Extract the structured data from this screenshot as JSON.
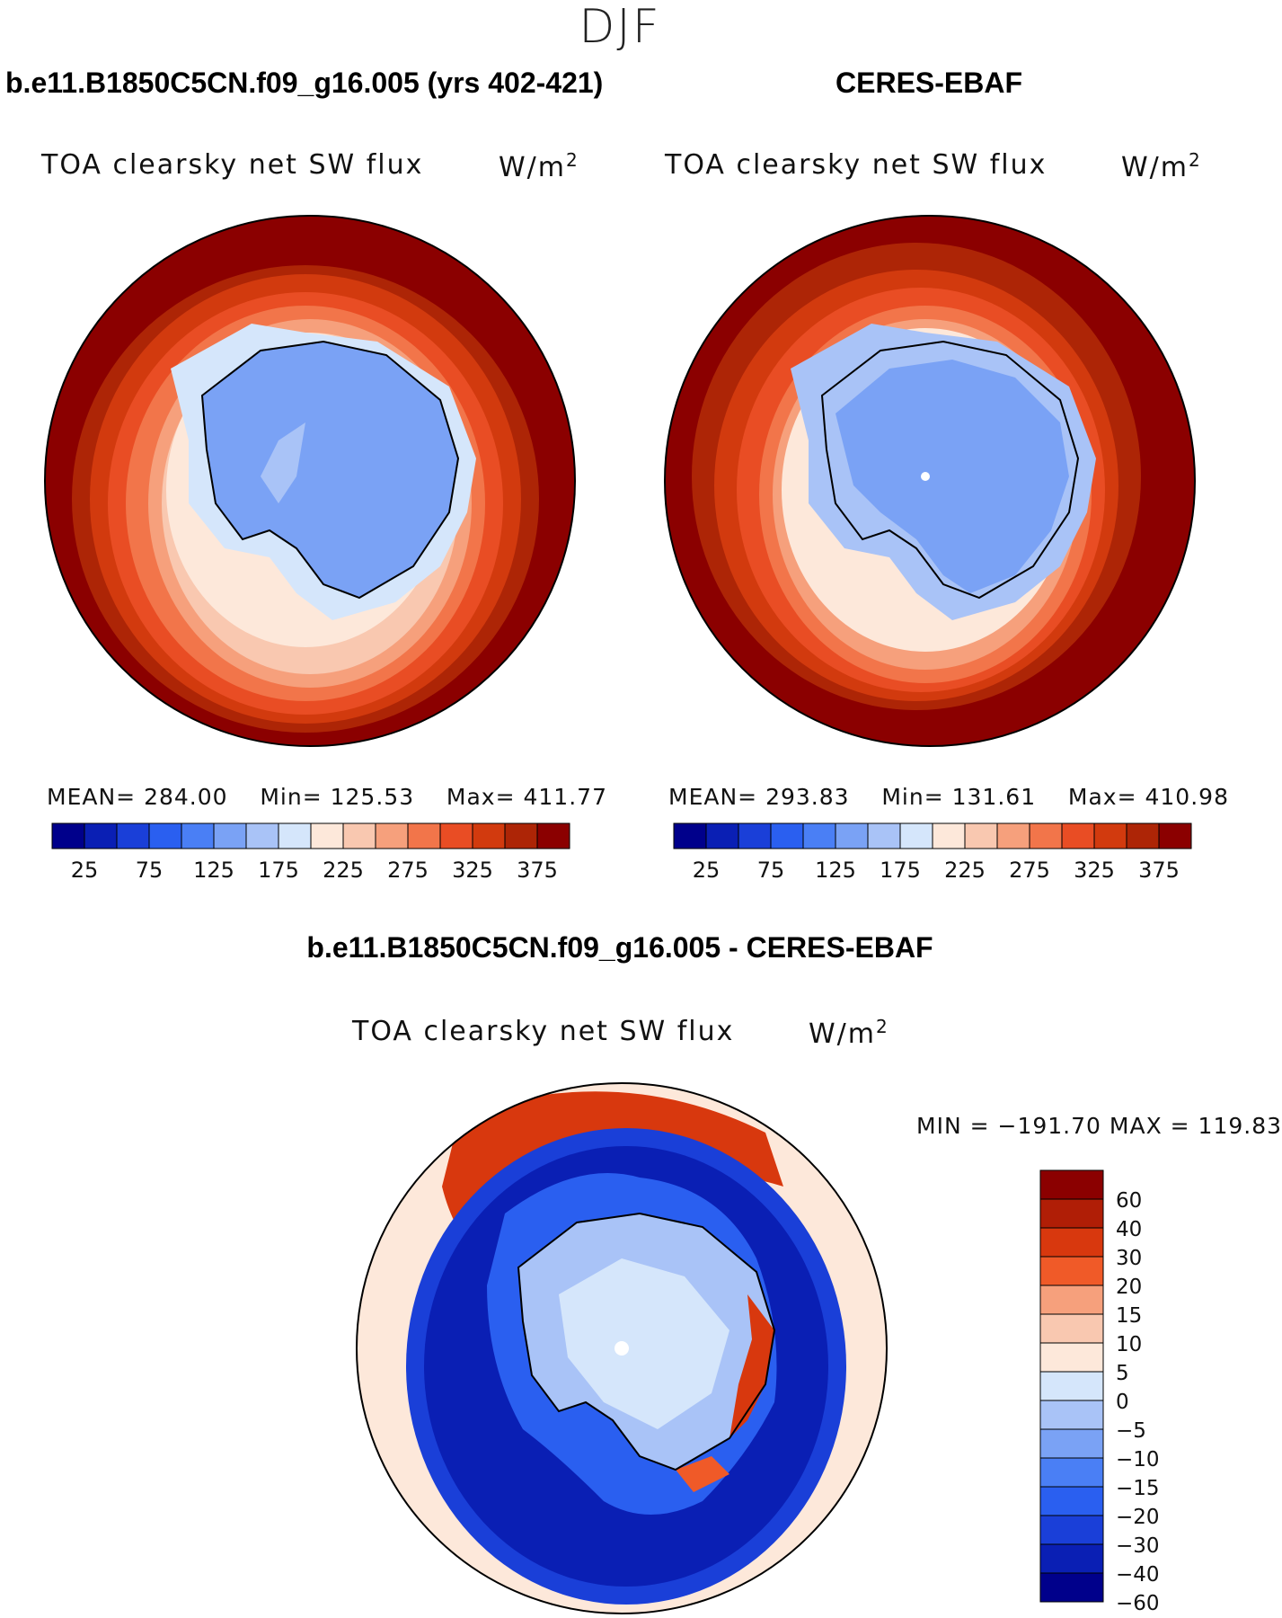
{
  "season": "DJF",
  "panels": [
    {
      "case_title": "b.e11.B1850C5CN.f09_g16.005 (yrs 402-421)",
      "variable": "TOA clearsky net SW flux",
      "units": "W/m",
      "units_exp": "2",
      "mean_label": "MEAN=",
      "mean": "284.00",
      "min_label": "Min=",
      "min": "125.53",
      "max_label": "Max=",
      "max": "411.77"
    },
    {
      "case_title": "CERES-EBAF",
      "variable": "TOA clearsky net SW flux",
      "units": "W/m",
      "units_exp": "2",
      "mean_label": "MEAN=",
      "mean": "293.83",
      "min_label": "Min=",
      "min": "131.61",
      "max_label": "Max=",
      "max": "410.98"
    }
  ],
  "diff_panel": {
    "title": "b.e11.B1850C5CN.f09_g16.005 - CERES-EBAF",
    "variable": "TOA clearsky net SW flux",
    "units": "W/m",
    "units_exp": "2",
    "min_label": "MIN =",
    "min": "−191.70",
    "max_label": "MAX =",
    "max": "119.83"
  },
  "abs_colorbar": {
    "colors": [
      "#00008b",
      "#0a1fb4",
      "#1a3fd8",
      "#2a5ff0",
      "#4a7ff5",
      "#7aa2f5",
      "#a9c3f7",
      "#d5e6fb",
      "#fde8da",
      "#f9c8b0",
      "#f6a07c",
      "#f2754a",
      "#e94d24",
      "#d23a0e",
      "#ad2506",
      "#8b0000"
    ],
    "tick_labels": [
      "25",
      "75",
      "125",
      "175",
      "225",
      "275",
      "325",
      "375"
    ]
  },
  "diff_colorbar": {
    "colors": [
      "#8b0000",
      "#b01e06",
      "#d8380e",
      "#f05a28",
      "#f6a07c",
      "#f9c8b0",
      "#fde8da",
      "#d5e6fb",
      "#a9c3f7",
      "#7aa2f5",
      "#4a7ff5",
      "#2a5ff0",
      "#1a3fd8",
      "#0a1fb4",
      "#00008b"
    ],
    "labels": [
      "60",
      "40",
      "30",
      "20",
      "15",
      "10",
      "5",
      "0",
      "−5",
      "−10",
      "−15",
      "−20",
      "−30",
      "−40",
      "−60"
    ]
  },
  "colors": {
    "ocean_dark_red": "#8b0000",
    "land_blue": "#7aa2f5",
    "diff_neutral": "#fde8da"
  }
}
